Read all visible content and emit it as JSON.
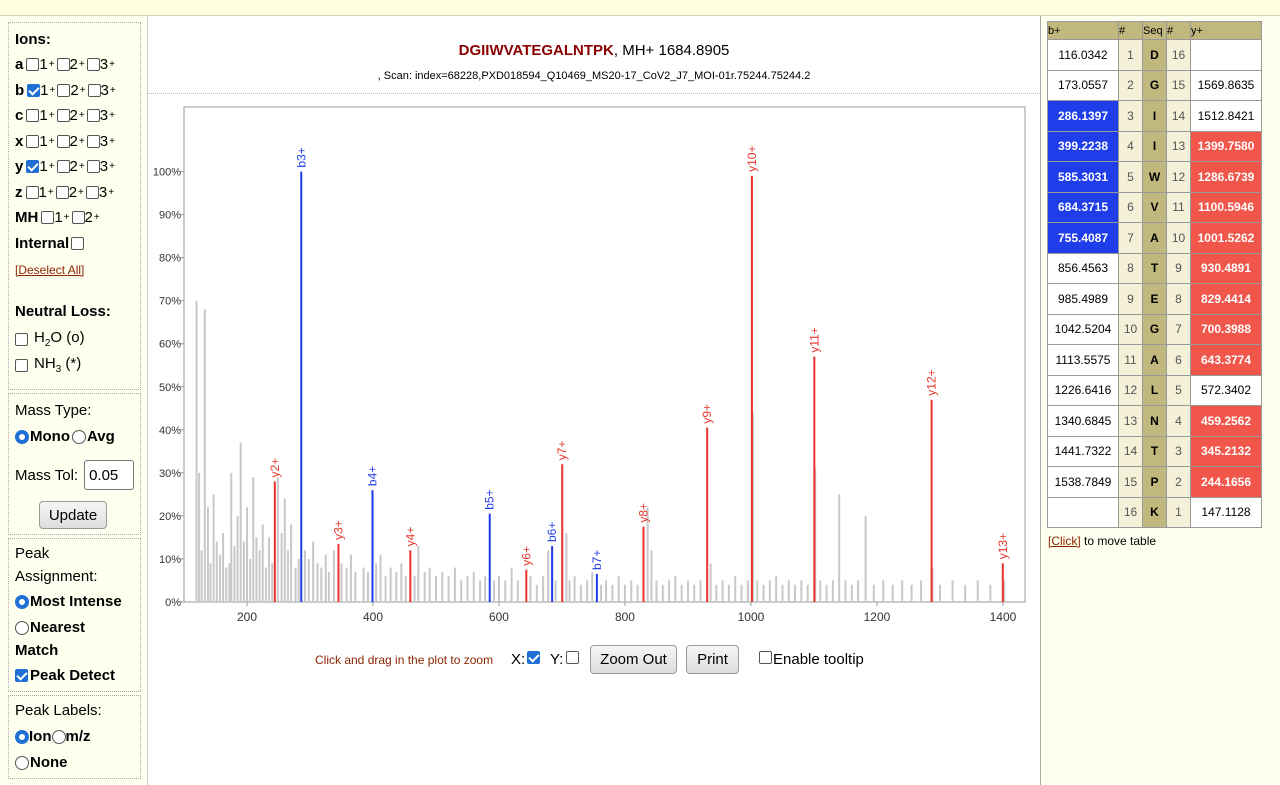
{
  "header": {
    "peptide": "DGIIWVATEGALNTPK",
    "mh_text": ", MH+ 1684.8905",
    "scan_text": ", Scan: index=68228,PXD018594_Q10469_MS20-17_CoV2_J7_MOI-01r.75244.75244.2"
  },
  "ions": {
    "heading": "Ions:",
    "rows": [
      {
        "name": "a",
        "charges": [
          {
            "label": "1",
            "checked": false
          },
          {
            "label": "2",
            "checked": false
          },
          {
            "label": "3",
            "checked": false
          }
        ]
      },
      {
        "name": "b",
        "charges": [
          {
            "label": "1",
            "checked": true
          },
          {
            "label": "2",
            "checked": false
          },
          {
            "label": "3",
            "checked": false
          }
        ]
      },
      {
        "name": "c",
        "charges": [
          {
            "label": "1",
            "checked": false
          },
          {
            "label": "2",
            "checked": false
          },
          {
            "label": "3",
            "checked": false
          }
        ]
      },
      {
        "name": "x",
        "charges": [
          {
            "label": "1",
            "checked": false
          },
          {
            "label": "2",
            "checked": false
          },
          {
            "label": "3",
            "checked": false
          }
        ]
      },
      {
        "name": "y",
        "charges": [
          {
            "label": "1",
            "checked": true
          },
          {
            "label": "2",
            "checked": false
          },
          {
            "label": "3",
            "checked": false
          }
        ]
      },
      {
        "name": "z",
        "charges": [
          {
            "label": "1",
            "checked": false
          },
          {
            "label": "2",
            "checked": false
          },
          {
            "label": "3",
            "checked": false
          }
        ]
      },
      {
        "name": "MH",
        "charges": [
          {
            "label": "1",
            "checked": false
          },
          {
            "label": "2",
            "checked": false
          }
        ]
      }
    ],
    "charge_suffix": "+",
    "internal_label": "Internal",
    "deselect_all": "[Deselect All]"
  },
  "neutral_loss": {
    "heading": "Neutral Loss:",
    "h2o": "H",
    "h2o_sub": "2",
    "h2o_rest": "O (o)",
    "nh3": "NH",
    "nh3_sub": "3",
    "nh3_rest": " (*)"
  },
  "mass_type": {
    "heading": "Mass Type:",
    "mono": "Mono",
    "avg": "Avg",
    "selected": "Mono",
    "tol_label": "Mass Tol:",
    "tol_value": "0.05",
    "update": "Update"
  },
  "peak_assignment": {
    "heading_1": "Peak",
    "heading_2": "Assignment:",
    "most_intense": "Most Intense",
    "nearest_1": "Nearest",
    "nearest_2": "Match",
    "peak_detect": "Peak Detect",
    "selected": "Most Intense",
    "peak_detect_checked": true
  },
  "peak_labels": {
    "heading": "Peak Labels:",
    "ion": "Ion",
    "mz": "m/z",
    "none": "None",
    "selected": "Ion"
  },
  "controls": {
    "zoom_hint": "Click and drag in the plot to zoom",
    "x_label": "X:",
    "x_checked": true,
    "y_label": "Y:",
    "y_checked": false,
    "zoom_out": "Zoom Out",
    "print": "Print",
    "tooltip": "Enable tooltip",
    "tooltip_checked": false
  },
  "table": {
    "headers": [
      "b+",
      "#",
      "Seq",
      "#",
      "y+"
    ],
    "rows": [
      {
        "b": "116.0342",
        "i": "1",
        "aa": "D",
        "j": "16",
        "y": "",
        "bh": false,
        "yh": false
      },
      {
        "b": "173.0557",
        "i": "2",
        "aa": "G",
        "j": "15",
        "y": "1569.8635",
        "bh": false,
        "yh": false
      },
      {
        "b": "286.1397",
        "i": "3",
        "aa": "I",
        "j": "14",
        "y": "1512.8421",
        "bh": true,
        "yh": false
      },
      {
        "b": "399.2238",
        "i": "4",
        "aa": "I",
        "j": "13",
        "y": "1399.7580",
        "bh": true,
        "yh": true
      },
      {
        "b": "585.3031",
        "i": "5",
        "aa": "W",
        "j": "12",
        "y": "1286.6739",
        "bh": true,
        "yh": true
      },
      {
        "b": "684.3715",
        "i": "6",
        "aa": "V",
        "j": "11",
        "y": "1100.5946",
        "bh": true,
        "yh": true
      },
      {
        "b": "755.4087",
        "i": "7",
        "aa": "A",
        "j": "10",
        "y": "1001.5262",
        "bh": true,
        "yh": true
      },
      {
        "b": "856.4563",
        "i": "8",
        "aa": "T",
        "j": "9",
        "y": "930.4891",
        "bh": false,
        "yh": true
      },
      {
        "b": "985.4989",
        "i": "9",
        "aa": "E",
        "j": "8",
        "y": "829.4414",
        "bh": false,
        "yh": true
      },
      {
        "b": "1042.5204",
        "i": "10",
        "aa": "G",
        "j": "7",
        "y": "700.3988",
        "bh": false,
        "yh": true
      },
      {
        "b": "1113.5575",
        "i": "11",
        "aa": "A",
        "j": "6",
        "y": "643.3774",
        "bh": false,
        "yh": true
      },
      {
        "b": "1226.6416",
        "i": "12",
        "aa": "L",
        "j": "5",
        "y": "572.3402",
        "bh": false,
        "yh": false
      },
      {
        "b": "1340.6845",
        "i": "13",
        "aa": "N",
        "j": "4",
        "y": "459.2562",
        "bh": false,
        "yh": true
      },
      {
        "b": "1441.7322",
        "i": "14",
        "aa": "T",
        "j": "3",
        "y": "345.2132",
        "bh": false,
        "yh": true
      },
      {
        "b": "1538.7849",
        "i": "15",
        "aa": "P",
        "j": "2",
        "y": "244.1656",
        "bh": false,
        "yh": true
      },
      {
        "b": "",
        "i": "16",
        "aa": "K",
        "j": "1",
        "y": "147.1128",
        "bh": false,
        "yh": false
      }
    ],
    "click_link": "[Click]",
    "click_text": " to move table"
  },
  "colors": {
    "b_ion": "#1f3de8",
    "y_ion": "#e8342a",
    "unmatched": "#c8c8c8",
    "title_red": "#8b0000"
  },
  "chart_data": {
    "type": "bar",
    "xlim": [
      100,
      1435
    ],
    "ylim": [
      0,
      115
    ],
    "xticks": [
      200,
      400,
      600,
      800,
      1000,
      1200,
      1400
    ],
    "yticks": [
      0,
      10,
      20,
      30,
      40,
      50,
      60,
      70,
      80,
      90,
      100
    ],
    "ytick_suffix": "%",
    "series": [
      {
        "name": "b+",
        "color": "#1f3de8",
        "points": [
          {
            "x": 286.14,
            "y": 100,
            "label": "b3+"
          },
          {
            "x": 399.22,
            "y": 26,
            "label": "b4+"
          },
          {
            "x": 585.3,
            "y": 20.5,
            "label": "b5+"
          },
          {
            "x": 684.37,
            "y": 13,
            "label": "b6+"
          },
          {
            "x": 755.41,
            "y": 6.5,
            "label": "b7+"
          }
        ]
      },
      {
        "name": "y+",
        "color": "#e8342a",
        "points": [
          {
            "x": 244.17,
            "y": 28,
            "label": "y2+"
          },
          {
            "x": 345.21,
            "y": 13.5,
            "label": "y3+"
          },
          {
            "x": 459.26,
            "y": 12,
            "label": "y4+"
          },
          {
            "x": 643.38,
            "y": 7.5,
            "label": "y6+"
          },
          {
            "x": 700.4,
            "y": 32,
            "label": "y7+"
          },
          {
            "x": 829.44,
            "y": 17.5,
            "label": "y8+"
          },
          {
            "x": 930.49,
            "y": 40.5,
            "label": "y9+"
          },
          {
            "x": 1001.53,
            "y": 99,
            "label": "y10+"
          },
          {
            "x": 1100.59,
            "y": 57,
            "label": "y11+"
          },
          {
            "x": 1286.67,
            "y": 47,
            "label": "y12+"
          },
          {
            "x": 1399.76,
            "y": 9,
            "label": "y13+"
          }
        ]
      },
      {
        "name": "unassigned",
        "color": "#c8c8c8",
        "points": [
          {
            "x": 120,
            "y": 70
          },
          {
            "x": 124,
            "y": 30
          },
          {
            "x": 128,
            "y": 12
          },
          {
            "x": 133,
            "y": 68
          },
          {
            "x": 138,
            "y": 22
          },
          {
            "x": 142,
            "y": 9
          },
          {
            "x": 147,
            "y": 25
          },
          {
            "x": 152,
            "y": 14
          },
          {
            "x": 157,
            "y": 11
          },
          {
            "x": 162,
            "y": 16
          },
          {
            "x": 167,
            "y": 8
          },
          {
            "x": 172,
            "y": 9
          },
          {
            "x": 175,
            "y": 30
          },
          {
            "x": 180,
            "y": 13
          },
          {
            "x": 185,
            "y": 20
          },
          {
            "x": 190,
            "y": 37
          },
          {
            "x": 195,
            "y": 14
          },
          {
            "x": 200,
            "y": 22
          },
          {
            "x": 205,
            "y": 10
          },
          {
            "x": 210,
            "y": 29
          },
          {
            "x": 215,
            "y": 15
          },
          {
            "x": 220,
            "y": 12
          },
          {
            "x": 225,
            "y": 18
          },
          {
            "x": 230,
            "y": 8
          },
          {
            "x": 235,
            "y": 15
          },
          {
            "x": 240,
            "y": 9
          },
          {
            "x": 249,
            "y": 29
          },
          {
            "x": 255,
            "y": 16
          },
          {
            "x": 260,
            "y": 24
          },
          {
            "x": 265,
            "y": 12
          },
          {
            "x": 270,
            "y": 18
          },
          {
            "x": 277,
            "y": 8
          },
          {
            "x": 282,
            "y": 10
          },
          {
            "x": 292,
            "y": 12
          },
          {
            "x": 298,
            "y": 10
          },
          {
            "x": 305,
            "y": 14
          },
          {
            "x": 312,
            "y": 9
          },
          {
            "x": 318,
            "y": 8
          },
          {
            "x": 325,
            "y": 11
          },
          {
            "x": 330,
            "y": 7
          },
          {
            "x": 338,
            "y": 12
          },
          {
            "x": 350,
            "y": 9
          },
          {
            "x": 358,
            "y": 8
          },
          {
            "x": 365,
            "y": 11
          },
          {
            "x": 372,
            "y": 7
          },
          {
            "x": 385,
            "y": 8
          },
          {
            "x": 392,
            "y": 7
          },
          {
            "x": 405,
            "y": 9
          },
          {
            "x": 412,
            "y": 11
          },
          {
            "x": 420,
            "y": 6
          },
          {
            "x": 428,
            "y": 8
          },
          {
            "x": 437,
            "y": 7
          },
          {
            "x": 445,
            "y": 9
          },
          {
            "x": 452,
            "y": 6
          },
          {
            "x": 466,
            "y": 6
          },
          {
            "x": 472,
            "y": 13
          },
          {
            "x": 482,
            "y": 7
          },
          {
            "x": 490,
            "y": 8
          },
          {
            "x": 500,
            "y": 6
          },
          {
            "x": 510,
            "y": 7
          },
          {
            "x": 520,
            "y": 6
          },
          {
            "x": 530,
            "y": 8
          },
          {
            "x": 540,
            "y": 5
          },
          {
            "x": 550,
            "y": 6
          },
          {
            "x": 560,
            "y": 7
          },
          {
            "x": 570,
            "y": 5
          },
          {
            "x": 578,
            "y": 6
          },
          {
            "x": 592,
            "y": 5
          },
          {
            "x": 600,
            "y": 6
          },
          {
            "x": 610,
            "y": 5
          },
          {
            "x": 620,
            "y": 8
          },
          {
            "x": 630,
            "y": 5
          },
          {
            "x": 650,
            "y": 6
          },
          {
            "x": 660,
            "y": 4
          },
          {
            "x": 670,
            "y": 6
          },
          {
            "x": 678,
            "y": 12
          },
          {
            "x": 690,
            "y": 5
          },
          {
            "x": 707,
            "y": 16
          },
          {
            "x": 712,
            "y": 5
          },
          {
            "x": 720,
            "y": 6
          },
          {
            "x": 730,
            "y": 4
          },
          {
            "x": 740,
            "y": 5
          },
          {
            "x": 748,
            "y": 7
          },
          {
            "x": 762,
            "y": 4
          },
          {
            "x": 770,
            "y": 5
          },
          {
            "x": 780,
            "y": 4
          },
          {
            "x": 790,
            "y": 6
          },
          {
            "x": 800,
            "y": 4
          },
          {
            "x": 810,
            "y": 5
          },
          {
            "x": 820,
            "y": 4
          },
          {
            "x": 836,
            "y": 22
          },
          {
            "x": 842,
            "y": 12
          },
          {
            "x": 850,
            "y": 5
          },
          {
            "x": 860,
            "y": 4
          },
          {
            "x": 870,
            "y": 5
          },
          {
            "x": 880,
            "y": 6
          },
          {
            "x": 890,
            "y": 4
          },
          {
            "x": 900,
            "y": 5
          },
          {
            "x": 910,
            "y": 4
          },
          {
            "x": 920,
            "y": 5
          },
          {
            "x": 936,
            "y": 9
          },
          {
            "x": 945,
            "y": 4
          },
          {
            "x": 955,
            "y": 5
          },
          {
            "x": 965,
            "y": 4
          },
          {
            "x": 975,
            "y": 6
          },
          {
            "x": 985,
            "y": 4
          },
          {
            "x": 995,
            "y": 5
          },
          {
            "x": 1003,
            "y": 44
          },
          {
            "x": 1010,
            "y": 5
          },
          {
            "x": 1020,
            "y": 4
          },
          {
            "x": 1030,
            "y": 5
          },
          {
            "x": 1040,
            "y": 6
          },
          {
            "x": 1050,
            "y": 4
          },
          {
            "x": 1060,
            "y": 5
          },
          {
            "x": 1070,
            "y": 4
          },
          {
            "x": 1080,
            "y": 5
          },
          {
            "x": 1090,
            "y": 4
          },
          {
            "x": 1102,
            "y": 31
          },
          {
            "x": 1110,
            "y": 5
          },
          {
            "x": 1120,
            "y": 4
          },
          {
            "x": 1130,
            "y": 5
          },
          {
            "x": 1140,
            "y": 25
          },
          {
            "x": 1150,
            "y": 5
          },
          {
            "x": 1160,
            "y": 4
          },
          {
            "x": 1170,
            "y": 5
          },
          {
            "x": 1182,
            "y": 20
          },
          {
            "x": 1195,
            "y": 4
          },
          {
            "x": 1210,
            "y": 5
          },
          {
            "x": 1225,
            "y": 4
          },
          {
            "x": 1240,
            "y": 5
          },
          {
            "x": 1255,
            "y": 4
          },
          {
            "x": 1270,
            "y": 5
          },
          {
            "x": 1288,
            "y": 8
          },
          {
            "x": 1300,
            "y": 4
          },
          {
            "x": 1320,
            "y": 5
          },
          {
            "x": 1340,
            "y": 4
          },
          {
            "x": 1360,
            "y": 5
          },
          {
            "x": 1380,
            "y": 4
          },
          {
            "x": 1402,
            "y": 5
          }
        ]
      }
    ]
  }
}
